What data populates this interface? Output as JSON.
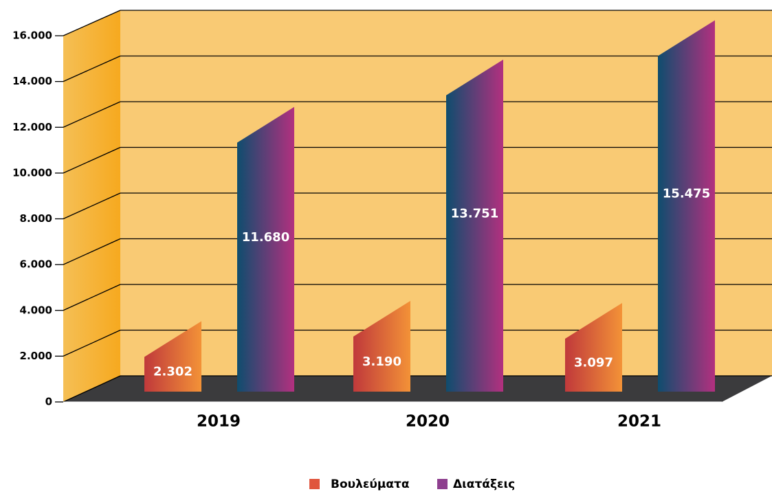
{
  "chart_data": {
    "type": "bar3d",
    "categories": [
      "2019",
      "2020",
      "2021"
    ],
    "series": [
      {
        "name": "Βουλεύματα",
        "color": "#e0553d",
        "gradient": [
          "#c0393b",
          "#f39237"
        ],
        "values": [
          2302,
          3190,
          3097
        ],
        "value_labels": [
          "2.302",
          "3.190",
          "3.097"
        ]
      },
      {
        "name": "Διατάξεις",
        "color": "#8e3f8f",
        "gradient": [
          "#0e4d6e",
          "#b3307f"
        ],
        "values": [
          11680,
          13751,
          15475
        ],
        "value_labels": [
          "11.680",
          "13.751",
          "15.475"
        ]
      }
    ],
    "ylim": [
      0,
      16000
    ],
    "yticks": [
      0,
      {
        "value": 2000,
        "label": "2.000"
      },
      {
        "value": 4000,
        "label": "4.000"
      },
      {
        "value": 6000,
        "label": "6.000"
      },
      {
        "value": 8000,
        "label": "8.000"
      },
      {
        "value": 10000,
        "label": "10.000"
      },
      {
        "value": 12000,
        "label": "12.000"
      },
      {
        "value": 14000,
        "label": "14.000"
      },
      {
        "value": 16000,
        "label": "16.000"
      }
    ],
    "grid": true
  }
}
